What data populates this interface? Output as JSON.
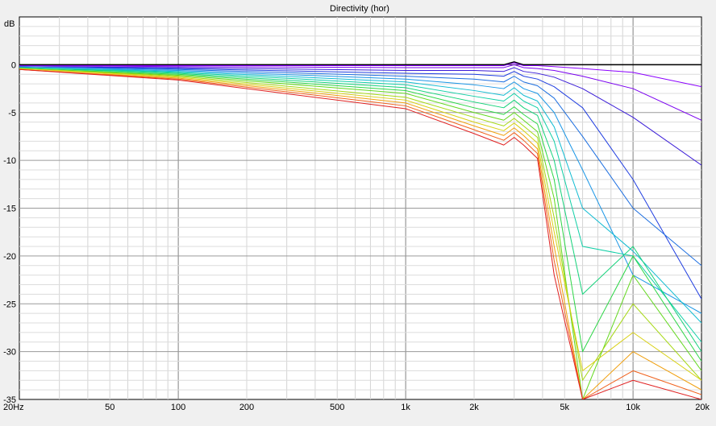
{
  "chart_data": {
    "type": "line",
    "title": "Directivity (hor)",
    "ylabel": "dB",
    "xlabel": "",
    "x_scale": "log",
    "xlim": [
      20,
      20000
    ],
    "ylim": [
      -35,
      5
    ],
    "grid": true,
    "legend": "none",
    "y_ticks": [
      {
        "value": 0,
        "label": "0"
      },
      {
        "value": -5,
        "label": "-5"
      },
      {
        "value": -10,
        "label": "-10"
      },
      {
        "value": -15,
        "label": "-15"
      },
      {
        "value": -20,
        "label": "-20"
      },
      {
        "value": -25,
        "label": "-25"
      },
      {
        "value": -30,
        "label": "-30"
      },
      {
        "value": -35,
        "label": "-35"
      }
    ],
    "x_ticks": [
      {
        "value": 20,
        "label": "20Hz"
      },
      {
        "value": 50,
        "label": "50"
      },
      {
        "value": 100,
        "label": "100"
      },
      {
        "value": 200,
        "label": "200"
      },
      {
        "value": 500,
        "label": "500"
      },
      {
        "value": 1000,
        "label": "1k"
      },
      {
        "value": 2000,
        "label": "2k"
      },
      {
        "value": 5000,
        "label": "5k"
      },
      {
        "value": 10000,
        "label": "10k"
      },
      {
        "value": 20000,
        "label": "20k"
      }
    ],
    "series": [
      {
        "color": "#000000",
        "x": [
          20,
          100,
          1000,
          2000,
          2700,
          3000,
          3300,
          3800,
          4500,
          6000,
          10000,
          20000
        ],
        "y": [
          0,
          0,
          0,
          0,
          0,
          0.3,
          0,
          0,
          0,
          0,
          0,
          0
        ]
      },
      {
        "color": "#8b00ff",
        "x": [
          20,
          100,
          1000,
          2000,
          2700,
          3000,
          3300,
          3800,
          4500,
          6000,
          10000,
          20000
        ],
        "y": [
          -0.1,
          -0.1,
          -0.1,
          -0.1,
          -0.1,
          0.2,
          -0.1,
          -0.1,
          -0.2,
          -0.4,
          -0.8,
          -2.3
        ]
      },
      {
        "color": "#7a00f0",
        "x": [
          20,
          100,
          1000,
          2000,
          2700,
          3000,
          3300,
          3800,
          4500,
          6000,
          10000,
          20000
        ],
        "y": [
          -0.1,
          -0.2,
          -0.3,
          -0.3,
          -0.3,
          0.0,
          -0.3,
          -0.4,
          -0.6,
          -1.2,
          -2.5,
          -5.8
        ]
      },
      {
        "color": "#3a1cd8",
        "x": [
          20,
          100,
          1000,
          2000,
          2700,
          3000,
          3300,
          3800,
          4500,
          6000,
          10000,
          20000
        ],
        "y": [
          -0.2,
          -0.3,
          -0.6,
          -0.6,
          -0.7,
          -0.3,
          -0.7,
          -0.9,
          -1.3,
          -2.5,
          -5.5,
          -10.5
        ]
      },
      {
        "color": "#1f3de0",
        "x": [
          20,
          100,
          1000,
          2000,
          2700,
          3000,
          3300,
          3800,
          4500,
          6000,
          10000,
          20000
        ],
        "y": [
          -0.2,
          -0.4,
          -0.9,
          -1.0,
          -1.2,
          -0.7,
          -1.2,
          -1.5,
          -2.3,
          -4.5,
          -12.0,
          -24.5
        ]
      },
      {
        "color": "#1c6ee0",
        "x": [
          20,
          100,
          1000,
          2000,
          2700,
          3000,
          3300,
          3800,
          4500,
          6000,
          10000,
          20000
        ],
        "y": [
          -0.2,
          -0.5,
          -1.2,
          -1.5,
          -1.8,
          -1.2,
          -1.8,
          -2.2,
          -3.5,
          -7.5,
          -15.0,
          -21.0
        ]
      },
      {
        "color": "#1a96e6",
        "x": [
          20,
          100,
          1000,
          2000,
          2700,
          3000,
          3300,
          3800,
          4500,
          6000,
          10000,
          20000
        ],
        "y": [
          -0.3,
          -0.6,
          -1.5,
          -2.1,
          -2.5,
          -1.8,
          -2.5,
          -3.0,
          -5.0,
          -11.0,
          -22.0,
          -26.0
        ]
      },
      {
        "color": "#12bcd2",
        "x": [
          20,
          100,
          1000,
          2000,
          2700,
          3000,
          3300,
          3800,
          4500,
          6000,
          10000,
          20000
        ],
        "y": [
          -0.3,
          -0.7,
          -1.8,
          -2.7,
          -3.2,
          -2.4,
          -3.2,
          -3.8,
          -6.5,
          -15.0,
          -19.5,
          -27.0
        ]
      },
      {
        "color": "#10cfa6",
        "x": [
          20,
          100,
          1000,
          2000,
          2700,
          3000,
          3300,
          3800,
          4500,
          6000,
          10000,
          20000
        ],
        "y": [
          -0.3,
          -0.8,
          -2.1,
          -3.3,
          -3.8,
          -3.0,
          -3.8,
          -4.5,
          -8.0,
          -19.0,
          -20.0,
          -29.0
        ]
      },
      {
        "color": "#14d27a",
        "x": [
          20,
          100,
          1000,
          2000,
          2700,
          3000,
          3300,
          3800,
          4500,
          6000,
          10000,
          20000
        ],
        "y": [
          -0.3,
          -0.9,
          -2.4,
          -3.9,
          -4.5,
          -3.7,
          -4.5,
          -5.3,
          -10.0,
          -24.0,
          -19.0,
          -30.0
        ]
      },
      {
        "color": "#2cd646",
        "x": [
          20,
          100,
          1000,
          2000,
          2700,
          3000,
          3300,
          3800,
          4500,
          6000,
          10000,
          20000
        ],
        "y": [
          -0.4,
          -1.0,
          -2.7,
          -4.5,
          -5.2,
          -4.4,
          -5.2,
          -6.2,
          -12.0,
          -30.0,
          -20.0,
          -31.0
        ]
      },
      {
        "color": "#62d81e",
        "x": [
          20,
          100,
          1000,
          2000,
          2700,
          3000,
          3300,
          3800,
          4500,
          6000,
          10000,
          20000
        ],
        "y": [
          -0.4,
          -1.1,
          -3.0,
          -5.0,
          -5.8,
          -5.0,
          -5.8,
          -7.0,
          -14.0,
          -35.0,
          -22.0,
          -32.0
        ]
      },
      {
        "color": "#a6d814",
        "x": [
          20,
          100,
          1000,
          2000,
          2700,
          3000,
          3300,
          3800,
          4500,
          6000,
          10000,
          20000
        ],
        "y": [
          -0.4,
          -1.2,
          -3.4,
          -5.5,
          -6.4,
          -5.6,
          -6.4,
          -7.6,
          -16.0,
          -33.0,
          -25.0,
          -33.0
        ]
      },
      {
        "color": "#d8d012",
        "x": [
          20,
          100,
          1000,
          2000,
          2700,
          3000,
          3300,
          3800,
          4500,
          6000,
          10000,
          20000
        ],
        "y": [
          -0.4,
          -1.3,
          -3.7,
          -6.0,
          -6.9,
          -6.1,
          -6.9,
          -8.2,
          -17.5,
          -32.0,
          -28.0,
          -33.0
        ]
      },
      {
        "color": "#f0a010",
        "x": [
          20,
          100,
          1000,
          2000,
          2700,
          3000,
          3300,
          3800,
          4500,
          6000,
          10000,
          20000
        ],
        "y": [
          -0.5,
          -1.4,
          -4.0,
          -6.4,
          -7.4,
          -6.6,
          -7.4,
          -8.8,
          -19.0,
          -35.0,
          -30.0,
          -34.0
        ]
      },
      {
        "color": "#f0601a",
        "x": [
          20,
          100,
          1000,
          2000,
          2700,
          3000,
          3300,
          3800,
          4500,
          6000,
          10000,
          20000
        ],
        "y": [
          -0.5,
          -1.5,
          -4.3,
          -6.8,
          -7.9,
          -7.1,
          -7.9,
          -9.3,
          -20.5,
          -35.0,
          -32.0,
          -34.5
        ]
      },
      {
        "color": "#e02020",
        "x": [
          20,
          100,
          1000,
          2000,
          2700,
          3000,
          3300,
          3800,
          4500,
          6000,
          10000,
          20000
        ],
        "y": [
          -0.5,
          -1.6,
          -4.6,
          -7.2,
          -8.4,
          -7.6,
          -8.4,
          -9.8,
          -22.0,
          -35.0,
          -33.0,
          -35.0
        ]
      }
    ]
  }
}
